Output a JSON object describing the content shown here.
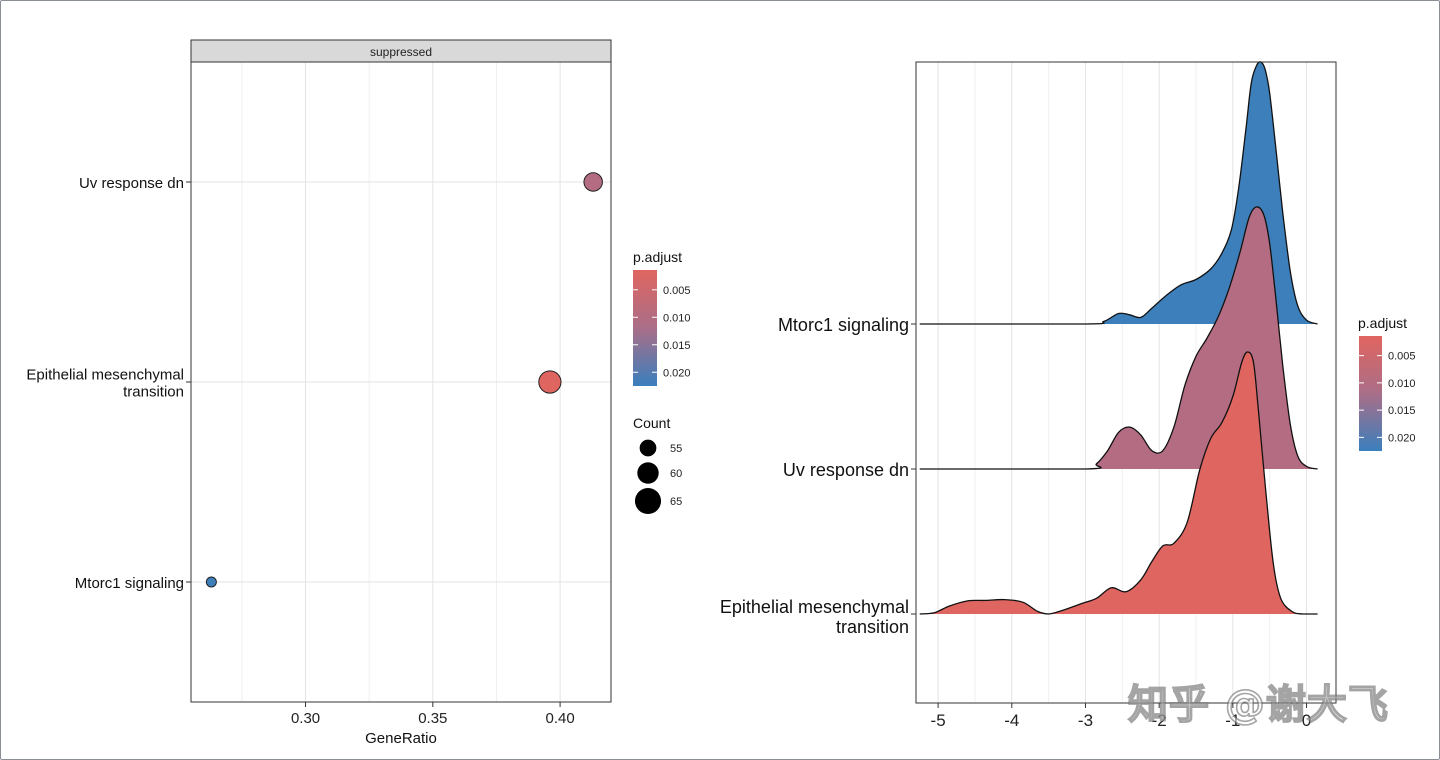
{
  "watermark": "知乎 @谢大飞",
  "colors": {
    "low": "#e06560",
    "mid": "#a96e88",
    "high": "#3a7fbd"
  },
  "chart_data": [
    {
      "type": "scatter",
      "subtype": "dotplot",
      "facet": "suppressed",
      "xlabel": "GeneRatio",
      "ylabel": "",
      "xlim": [
        0.255,
        0.42
      ],
      "xticks": [
        0.3,
        0.35,
        0.4
      ],
      "xtick_labels": [
        "0.30",
        "0.35",
        "0.40"
      ],
      "categories": [
        "Uv response dn",
        "Epithelial mesenchymal transition",
        "Mtorc1 signaling"
      ],
      "category_labels": [
        [
          "Uv response dn"
        ],
        [
          "Epithelial mesenchymal",
          "transition"
        ],
        [
          "Mtorc1 signaling"
        ]
      ],
      "points": [
        {
          "category": "Uv response dn",
          "x": 0.413,
          "count": 59,
          "p_adjust": 0.01
        },
        {
          "category": "Epithelial mesenchymal transition",
          "x": 0.396,
          "count": 63,
          "p_adjust": 0.0015
        },
        {
          "category": "Mtorc1 signaling",
          "x": 0.263,
          "count": 50,
          "p_adjust": 0.0222
        }
      ],
      "legend_color": {
        "title": "p.adjust",
        "range": [
          0.0014,
          0.0225
        ],
        "ticks": [
          0.005,
          0.01,
          0.015,
          0.02
        ],
        "tick_labels": [
          "0.005",
          "0.010",
          "0.015",
          "0.020"
        ]
      },
      "legend_size": {
        "title": "Count",
        "values": [
          55,
          60,
          65
        ],
        "labels": [
          "55",
          "60",
          "65"
        ]
      }
    },
    {
      "type": "area",
      "subtype": "ridgeline",
      "xlim": [
        -5.3,
        0.4
      ],
      "xticks": [
        -5,
        -4,
        -3,
        -2,
        -1,
        0
      ],
      "xtick_labels": [
        "-5",
        "-4",
        "-3",
        "-2",
        "-1",
        "0"
      ],
      "ridge_height": 0.75,
      "ridges": [
        {
          "category": "Mtorc1 signaling",
          "label": [
            "Mtorc1 signaling"
          ],
          "p_adjust": 0.0222,
          "density": [
            [
              -5.25,
              0
            ],
            [
              -3.0,
              0
            ],
            [
              -2.75,
              0.01
            ],
            [
              -2.55,
              0.04
            ],
            [
              -2.4,
              0.035
            ],
            [
              -2.25,
              0.025
            ],
            [
              -2.1,
              0.06
            ],
            [
              -1.9,
              0.11
            ],
            [
              -1.7,
              0.15
            ],
            [
              -1.5,
              0.17
            ],
            [
              -1.3,
              0.21
            ],
            [
              -1.15,
              0.27
            ],
            [
              -1.02,
              0.36
            ],
            [
              -0.92,
              0.52
            ],
            [
              -0.82,
              0.75
            ],
            [
              -0.75,
              0.92
            ],
            [
              -0.68,
              0.985
            ],
            [
              -0.62,
              1.0
            ],
            [
              -0.56,
              0.97
            ],
            [
              -0.5,
              0.88
            ],
            [
              -0.42,
              0.68
            ],
            [
              -0.32,
              0.42
            ],
            [
              -0.22,
              0.2
            ],
            [
              -0.12,
              0.07
            ],
            [
              0.0,
              0.015
            ],
            [
              0.15,
              0
            ]
          ]
        },
        {
          "category": "Uv response dn",
          "label": [
            "Uv response dn"
          ],
          "p_adjust": 0.01,
          "density": [
            [
              -5.25,
              0
            ],
            [
              -3.0,
              0
            ],
            [
              -2.85,
              0.02
            ],
            [
              -2.7,
              0.07
            ],
            [
              -2.55,
              0.14
            ],
            [
              -2.4,
              0.16
            ],
            [
              -2.25,
              0.13
            ],
            [
              -2.1,
              0.07
            ],
            [
              -1.95,
              0.07
            ],
            [
              -1.8,
              0.16
            ],
            [
              -1.65,
              0.32
            ],
            [
              -1.5,
              0.43
            ],
            [
              -1.35,
              0.5
            ],
            [
              -1.2,
              0.58
            ],
            [
              -1.05,
              0.69
            ],
            [
              -0.9,
              0.83
            ],
            [
              -0.78,
              0.96
            ],
            [
              -0.68,
              1.0
            ],
            [
              -0.58,
              0.97
            ],
            [
              -0.5,
              0.86
            ],
            [
              -0.42,
              0.66
            ],
            [
              -0.32,
              0.39
            ],
            [
              -0.22,
              0.17
            ],
            [
              -0.12,
              0.05
            ],
            [
              0.0,
              0.01
            ],
            [
              0.15,
              0
            ]
          ]
        },
        {
          "category": "Epithelial mesenchymal transition",
          "label": [
            "Epithelial mesenchymal",
            "transition"
          ],
          "p_adjust": 0.0015,
          "density": [
            [
              -5.25,
              0
            ],
            [
              -5.05,
              0.005
            ],
            [
              -4.85,
              0.03
            ],
            [
              -4.6,
              0.05
            ],
            [
              -4.35,
              0.052
            ],
            [
              -4.1,
              0.055
            ],
            [
              -3.85,
              0.045
            ],
            [
              -3.65,
              0.01
            ],
            [
              -3.5,
              0.0
            ],
            [
              -3.3,
              0.015
            ],
            [
              -3.05,
              0.04
            ],
            [
              -2.85,
              0.06
            ],
            [
              -2.65,
              0.1
            ],
            [
              -2.45,
              0.085
            ],
            [
              -2.25,
              0.13
            ],
            [
              -2.1,
              0.2
            ],
            [
              -1.95,
              0.26
            ],
            [
              -1.8,
              0.27
            ],
            [
              -1.62,
              0.35
            ],
            [
              -1.45,
              0.55
            ],
            [
              -1.3,
              0.67
            ],
            [
              -1.15,
              0.73
            ],
            [
              -1.0,
              0.83
            ],
            [
              -0.88,
              0.96
            ],
            [
              -0.8,
              1.0
            ],
            [
              -0.72,
              0.96
            ],
            [
              -0.65,
              0.77
            ],
            [
              -0.55,
              0.46
            ],
            [
              -0.45,
              0.19
            ],
            [
              -0.35,
              0.06
            ],
            [
              -0.2,
              0.01
            ],
            [
              -0.05,
              0
            ],
            [
              0.15,
              0
            ]
          ]
        }
      ],
      "legend_color": {
        "title": "p.adjust",
        "range": [
          0.0014,
          0.0225
        ],
        "ticks": [
          0.005,
          0.01,
          0.015,
          0.02
        ],
        "tick_labels": [
          "0.005",
          "0.010",
          "0.015",
          "0.020"
        ]
      }
    }
  ]
}
